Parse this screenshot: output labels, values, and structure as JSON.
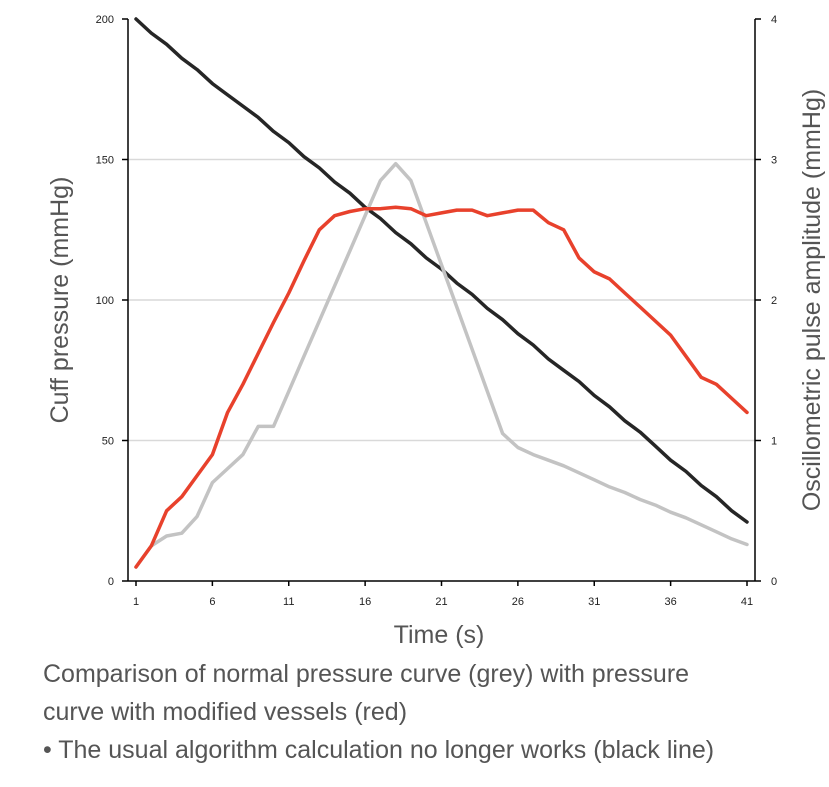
{
  "colors": {
    "cuff_line": "#262626",
    "normal_line": "#c3c3c3",
    "modified_line": "#e8412c",
    "grid": "#d9d9d9",
    "axis": "#000000",
    "text": "#555555"
  },
  "caption": {
    "line1": "Comparison of normal pressure curve (grey) with pressure",
    "line2": "curve with modified vessels (red)",
    "line3": "• The usual algorithm calculation no longer works (black line)"
  },
  "chart_data": {
    "type": "line",
    "xlabel": "Time (s)",
    "ylabel_left": "Cuff pressure (mmHg)",
    "ylabel_right": "Oscillometric pulse amplitude (mmHg)",
    "xlim": [
      1,
      41
    ],
    "ylim_left": [
      0,
      200
    ],
    "ylim_right": [
      0,
      4
    ],
    "x_ticks": [
      1,
      6,
      11,
      16,
      21,
      26,
      31,
      36,
      41
    ],
    "y_ticks_left": [
      0,
      50,
      100,
      150,
      200
    ],
    "y_ticks_right": [
      0,
      1,
      2,
      3,
      4
    ],
    "grid": "horizontal",
    "x": [
      1,
      2,
      3,
      4,
      5,
      6,
      7,
      8,
      9,
      10,
      11,
      12,
      13,
      14,
      15,
      16,
      17,
      18,
      19,
      20,
      21,
      22,
      23,
      24,
      25,
      26,
      27,
      28,
      29,
      30,
      31,
      32,
      33,
      34,
      35,
      36,
      37,
      38,
      39,
      40,
      41
    ],
    "series": [
      {
        "key": "cuff",
        "axis": "left",
        "color": "#262626",
        "values": [
          200,
          195,
          191,
          186,
          182,
          177,
          173,
          169,
          165,
          160,
          156,
          151,
          147,
          142,
          138,
          133,
          129,
          124,
          120,
          115,
          111,
          106,
          102,
          97,
          93,
          88,
          84,
          79,
          75,
          71,
          66,
          62,
          57,
          53,
          48,
          43,
          39,
          34,
          30,
          25,
          21
        ]
      },
      {
        "key": "normal",
        "axis": "right",
        "color": "#c3c3c3",
        "values": [
          0.1,
          0.25,
          0.32,
          0.34,
          0.46,
          0.7,
          0.8,
          0.9,
          1.1,
          1.1,
          1.35,
          1.6,
          1.85,
          2.1,
          2.35,
          2.6,
          2.85,
          2.97,
          2.85,
          2.55,
          2.25,
          1.95,
          1.65,
          1.35,
          1.05,
          0.95,
          0.9,
          0.86,
          0.82,
          0.77,
          0.72,
          0.67,
          0.63,
          0.58,
          0.54,
          0.49,
          0.45,
          0.4,
          0.35,
          0.3,
          0.26
        ]
      },
      {
        "key": "modified",
        "axis": "right",
        "color": "#e8412c",
        "values": [
          0.1,
          0.25,
          0.5,
          0.6,
          0.75,
          0.9,
          1.2,
          1.4,
          1.62,
          1.84,
          2.05,
          2.28,
          2.5,
          2.6,
          2.63,
          2.65,
          2.65,
          2.66,
          2.65,
          2.6,
          2.62,
          2.64,
          2.64,
          2.6,
          2.62,
          2.64,
          2.64,
          2.55,
          2.5,
          2.3,
          2.2,
          2.15,
          2.05,
          1.95,
          1.85,
          1.75,
          1.6,
          1.45,
          1.4,
          1.3,
          1.2
        ]
      }
    ]
  }
}
